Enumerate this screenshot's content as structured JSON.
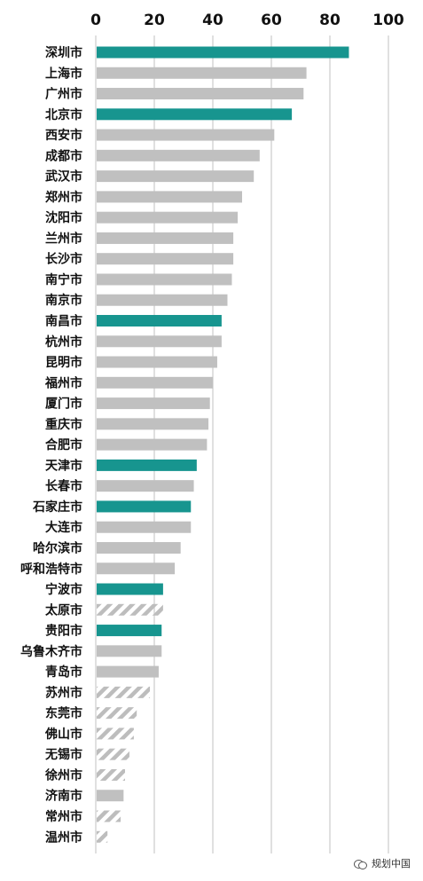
{
  "chart_data": {
    "type": "bar",
    "orientation": "horizontal",
    "xlim": [
      0,
      100
    ],
    "xticks": [
      "0",
      "20",
      "40",
      "60",
      "80",
      "100"
    ],
    "grid": true,
    "colors": {
      "highlight": "#17958f",
      "normal": "#c0c0c0",
      "hatched": "#bdbdbd",
      "grid": "#d6d6d6"
    },
    "categories": [
      "深圳市",
      "上海市",
      "广州市",
      "北京市",
      "西安市",
      "成都市",
      "武汉市",
      "郑州市",
      "沈阳市",
      "兰州市",
      "长沙市",
      "南宁市",
      "南京市",
      "南昌市",
      "杭州市",
      "昆明市",
      "福州市",
      "厦门市",
      "重庆市",
      "合肥市",
      "天津市",
      "长春市",
      "石家庄市",
      "大连市",
      "哈尔滨市",
      "呼和浩特市",
      "宁波市",
      "太原市",
      "贵阳市",
      "乌鲁木齐市",
      "青岛市",
      "苏州市",
      "东莞市",
      "佛山市",
      "无锡市",
      "徐州市",
      "济南市",
      "常州市",
      "温州市"
    ],
    "values": [
      86.5,
      72,
      71,
      67,
      61,
      56,
      54,
      50,
      48.5,
      47,
      47,
      46.5,
      45,
      43,
      43,
      41.5,
      40,
      39,
      38.5,
      38,
      34.5,
      33.5,
      32.5,
      32.5,
      29,
      27,
      23,
      23,
      22.5,
      22.5,
      21.5,
      18.5,
      14,
      13,
      11.5,
      10,
      9.5,
      8.5,
      4
    ],
    "styles": [
      "highlight",
      "normal",
      "normal",
      "highlight",
      "normal",
      "normal",
      "normal",
      "normal",
      "normal",
      "normal",
      "normal",
      "normal",
      "normal",
      "highlight",
      "normal",
      "normal",
      "normal",
      "normal",
      "normal",
      "normal",
      "highlight",
      "normal",
      "highlight",
      "normal",
      "normal",
      "normal",
      "highlight",
      "hatched",
      "highlight",
      "normal",
      "normal",
      "hatched",
      "hatched",
      "hatched",
      "hatched",
      "hatched",
      "normal",
      "hatched",
      "hatched"
    ]
  },
  "watermark": {
    "text": "规划中国",
    "icon": "wechat-icon"
  }
}
